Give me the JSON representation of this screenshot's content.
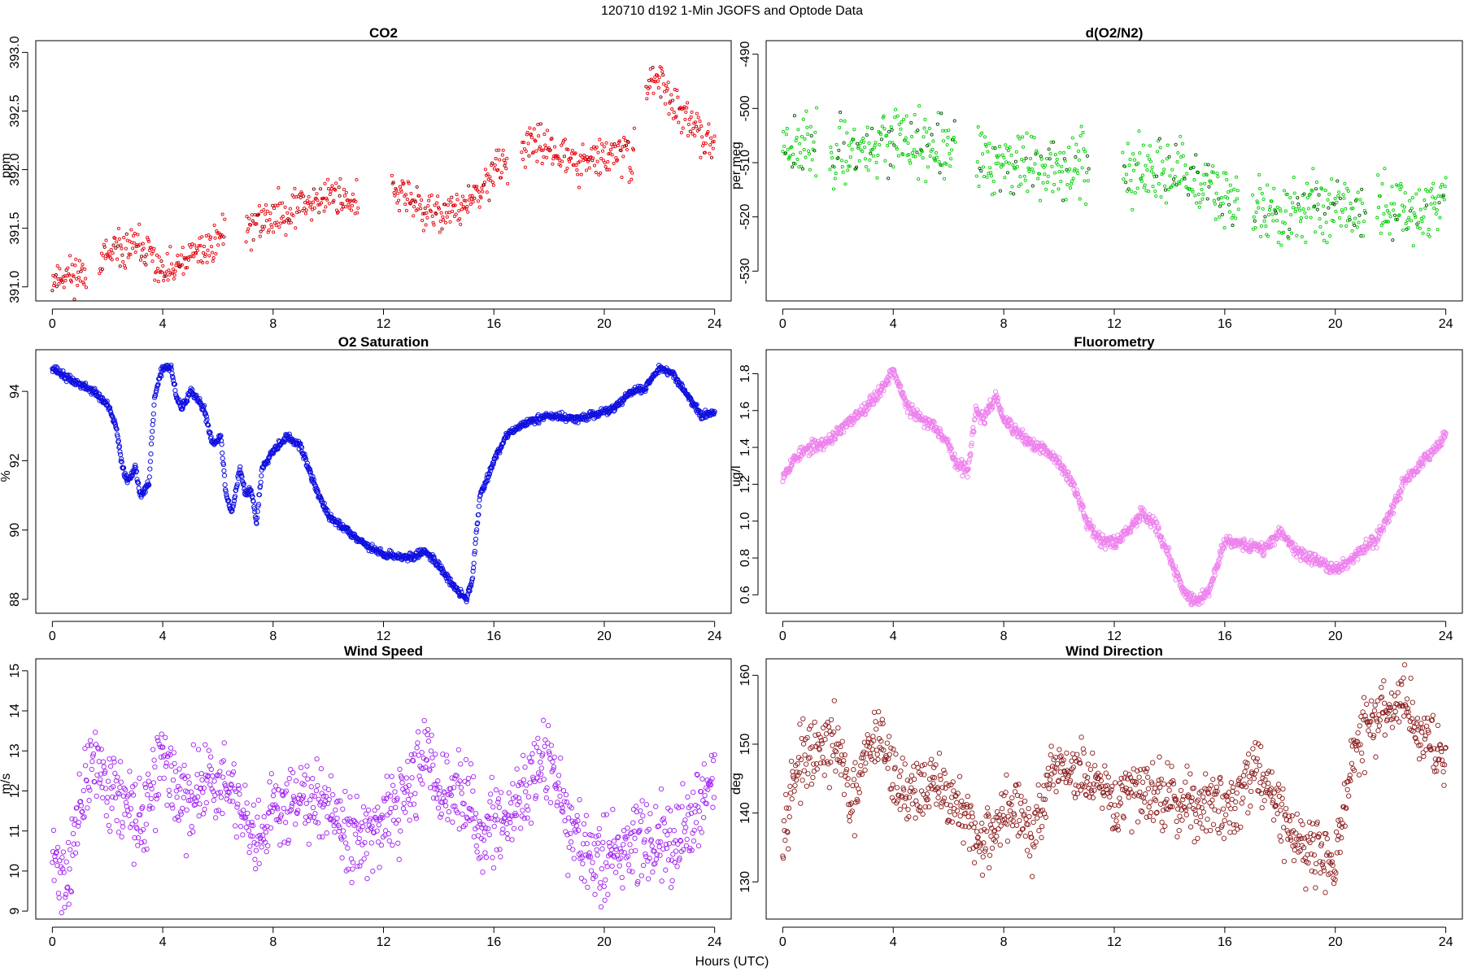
{
  "figure": {
    "title": "120710   d192   1-Min  JGOFS and Optode Data",
    "xlabel": "Hours (UTC)"
  },
  "chart_data": [
    {
      "id": "co2",
      "type": "scatter",
      "title": "CO2",
      "ylabel": "ppm",
      "color": "#e8000b",
      "dark_color": "#7a0000",
      "marker": "small-circle",
      "xlim": [
        -0.6,
        24.6
      ],
      "ylim": [
        390.88,
        393.1
      ],
      "xticks": [
        0,
        4,
        8,
        12,
        16,
        20,
        24
      ],
      "yticks": [
        391.0,
        391.5,
        392.0,
        392.5,
        393.0
      ],
      "ytick_labels": [
        "391.0",
        "391.5",
        "392.0",
        "392.5",
        "393.0"
      ],
      "gaps": [
        [
          1.25,
          1.7
        ],
        [
          6.25,
          7.0
        ],
        [
          11.1,
          12.3
        ],
        [
          16.5,
          17.0
        ],
        [
          21.1,
          21.5
        ]
      ],
      "trend_x": [
        0,
        0.4,
        1.0,
        1.3,
        2.0,
        3.0,
        3.5,
        4.0,
        4.5,
        5.0,
        6.0,
        6.2,
        7.0,
        8.0,
        9.0,
        10.0,
        11.0,
        12.3,
        13.0,
        13.5,
        14.5,
        15.0,
        15.5,
        16.0,
        16.5,
        17.0,
        18.0,
        19.0,
        20.0,
        20.5,
        21.0,
        21.5,
        22.0,
        22.5,
        23.0,
        23.5,
        24.0
      ],
      "trend_y": [
        391.07,
        391.1,
        391.12,
        391.15,
        391.25,
        391.35,
        391.3,
        391.1,
        391.15,
        391.25,
        391.4,
        391.5,
        391.5,
        391.6,
        391.7,
        391.78,
        391.75,
        391.8,
        391.75,
        391.62,
        391.65,
        391.7,
        391.78,
        392.0,
        392.05,
        392.2,
        392.2,
        392.05,
        392.1,
        392.15,
        392.1,
        392.7,
        392.8,
        392.55,
        392.4,
        392.3,
        392.25
      ],
      "noise": 0.12,
      "seed": 11
    },
    {
      "id": "do2n2",
      "type": "scatter",
      "title": "d(O2/N2)",
      "ylabel": "per meg",
      "color": "#00d000",
      "dark_color": "#005000",
      "marker": "small-circle",
      "xlim": [
        -0.6,
        24.6
      ],
      "ylim": [
        -535.5,
        -487.5
      ],
      "xticks": [
        0,
        4,
        8,
        12,
        16,
        20,
        24
      ],
      "yticks": [
        -530,
        -520,
        -510,
        -500,
        -490
      ],
      "ytick_labels": [
        "-530",
        "-520",
        "-510",
        "-500",
        "-490"
      ],
      "gaps": [
        [
          1.25,
          1.7
        ],
        [
          6.25,
          7.0
        ],
        [
          11.1,
          12.3
        ],
        [
          16.5,
          17.0
        ],
        [
          21.1,
          21.5
        ]
      ],
      "trend_x": [
        0,
        2,
        4,
        6,
        8,
        10,
        11,
        12.3,
        14,
        16,
        17,
        18,
        20,
        21,
        22,
        23,
        24
      ],
      "trend_y": [
        -506,
        -508,
        -506,
        -508,
        -510,
        -511,
        -510,
        -512,
        -512,
        -516,
        -518,
        -520,
        -517,
        -519,
        -518,
        -519,
        -517
      ],
      "noise": 4.5,
      "seed": 23
    },
    {
      "id": "o2sat",
      "type": "scatter",
      "title": "O2 Saturation",
      "ylabel": "%",
      "color": "#1010e0",
      "dark_color": "#1010e0",
      "marker": "dense-circle",
      "xlim": [
        -0.6,
        24.6
      ],
      "ylim": [
        87.6,
        95.2
      ],
      "xticks": [
        0,
        4,
        8,
        12,
        16,
        20,
        24
      ],
      "yticks": [
        88,
        90,
        92,
        94
      ],
      "ytick_labels": [
        "88",
        "90",
        "92",
        "94"
      ],
      "gaps": [],
      "trend_x": [
        0,
        0.5,
        1.0,
        1.5,
        2.0,
        2.3,
        2.5,
        2.7,
        3.0,
        3.2,
        3.5,
        3.7,
        4.0,
        4.3,
        4.5,
        4.7,
        5.0,
        5.5,
        5.8,
        6.1,
        6.3,
        6.5,
        6.8,
        7.0,
        7.2,
        7.4,
        7.6,
        8.0,
        8.5,
        9.0,
        9.5,
        10.0,
        10.5,
        11.0,
        11.5,
        12.0,
        13.0,
        13.5,
        14.0,
        14.5,
        15.0,
        15.2,
        15.5,
        16.0,
        16.5,
        17.0,
        17.5,
        18.0,
        19.0,
        20.0,
        20.5,
        21.0,
        21.5,
        22.0,
        22.5,
        23.0,
        23.5,
        24.0
      ],
      "trend_y": [
        94.7,
        94.4,
        94.2,
        94.0,
        93.6,
        93.0,
        92.0,
        91.4,
        91.8,
        91.0,
        91.3,
        93.8,
        94.7,
        94.7,
        93.8,
        93.5,
        94.0,
        93.5,
        92.5,
        92.7,
        91.0,
        90.5,
        91.8,
        91.0,
        91.2,
        90.2,
        91.8,
        92.3,
        92.7,
        92.4,
        91.3,
        90.4,
        90.1,
        89.8,
        89.5,
        89.3,
        89.2,
        89.4,
        89.0,
        88.4,
        88.0,
        88.5,
        91.0,
        92.0,
        92.8,
        93.0,
        93.2,
        93.3,
        93.2,
        93.4,
        93.6,
        94.0,
        94.1,
        94.7,
        94.5,
        93.9,
        93.3,
        93.4
      ],
      "noise": 0.08,
      "seed": 37
    },
    {
      "id": "fluor",
      "type": "scatter",
      "title": "Fluorometry",
      "ylabel": "ug/l",
      "color": "#ee82ee",
      "dark_color": "#ee82ee",
      "marker": "dense-circle",
      "xlim": [
        -0.6,
        24.6
      ],
      "ylim": [
        0.5,
        1.93
      ],
      "xticks": [
        0,
        4,
        8,
        12,
        16,
        20,
        24
      ],
      "yticks": [
        0.6,
        0.8,
        1.0,
        1.2,
        1.4,
        1.6,
        1.8
      ],
      "ytick_labels": [
        "0.6",
        "0.8",
        "1.0",
        "1.2",
        "1.4",
        "1.6",
        "1.8"
      ],
      "gaps": [],
      "trend_x": [
        0,
        0.5,
        1.0,
        1.5,
        2.0,
        2.5,
        3.0,
        3.5,
        4.0,
        4.5,
        5.0,
        5.5,
        6.0,
        6.3,
        6.7,
        7.0,
        7.3,
        7.7,
        8.0,
        8.5,
        9.0,
        9.5,
        10.0,
        10.5,
        11.0,
        11.5,
        12.0,
        12.5,
        13.0,
        13.5,
        14.0,
        14.5,
        15.0,
        15.5,
        16.0,
        16.5,
        17.0,
        17.5,
        18.0,
        18.5,
        19.0,
        19.5,
        20.0,
        20.5,
        21.0,
        21.5,
        22.0,
        22.5,
        23.0,
        23.5,
        24.0
      ],
      "trend_y": [
        1.25,
        1.35,
        1.4,
        1.42,
        1.48,
        1.55,
        1.62,
        1.7,
        1.82,
        1.62,
        1.55,
        1.52,
        1.42,
        1.3,
        1.28,
        1.6,
        1.55,
        1.68,
        1.55,
        1.48,
        1.42,
        1.38,
        1.32,
        1.2,
        1.0,
        0.9,
        0.88,
        0.95,
        1.05,
        0.98,
        0.8,
        0.62,
        0.56,
        0.65,
        0.9,
        0.88,
        0.86,
        0.85,
        0.95,
        0.85,
        0.8,
        0.78,
        0.73,
        0.78,
        0.85,
        0.9,
        1.05,
        1.22,
        1.3,
        1.38,
        1.47
      ],
      "noise": 0.025,
      "seed": 53
    },
    {
      "id": "wspd",
      "type": "scatter",
      "title": "Wind Speed",
      "ylabel": "m/s",
      "color": "#a020f0",
      "dark_color": "#a020f0",
      "marker": "open-circle",
      "xlim": [
        -0.6,
        24.6
      ],
      "ylim": [
        8.8,
        15.3
      ],
      "xticks": [
        0,
        4,
        8,
        12,
        16,
        20,
        24
      ],
      "yticks": [
        9,
        10,
        11,
        12,
        13,
        14,
        15
      ],
      "ytick_labels": [
        "9",
        "10",
        "11",
        "12",
        "13",
        "14",
        "15"
      ],
      "gaps": [],
      "trend_x": [
        0,
        0.5,
        1.0,
        1.5,
        2.0,
        2.5,
        3.0,
        3.5,
        4.0,
        4.5,
        5.0,
        5.5,
        6.0,
        6.5,
        7.0,
        7.5,
        8.0,
        9.0,
        10.0,
        11.0,
        12.0,
        13.0,
        13.5,
        14.0,
        15.0,
        15.5,
        16.0,
        16.5,
        17.0,
        17.5,
        18.0,
        18.5,
        19.0,
        19.5,
        20.0,
        21.0,
        22.0,
        23.0,
        23.5,
        24.0
      ],
      "trend_y": [
        10.3,
        9.8,
        11.5,
        12.8,
        12.2,
        11.8,
        11.2,
        11.5,
        13.0,
        12.0,
        11.5,
        12.5,
        12.0,
        12.2,
        11.0,
        10.5,
        11.5,
        12.0,
        11.8,
        10.8,
        11.0,
        12.0,
        13.0,
        12.0,
        11.8,
        11.0,
        11.2,
        11.0,
        12.0,
        12.5,
        12.8,
        11.5,
        10.8,
        10.3,
        10.2,
        10.8,
        10.8,
        11.0,
        11.5,
        12.3
      ],
      "noise": 0.75,
      "seed": 71
    },
    {
      "id": "wdir",
      "type": "scatter",
      "title": "Wind Direction",
      "ylabel": "deg",
      "color": "#8b1a1a",
      "dark_color": "#8b1a1a",
      "marker": "open-circle",
      "xlim": [
        -0.6,
        24.6
      ],
      "ylim": [
        124.6,
        162.4
      ],
      "xticks": [
        0,
        4,
        8,
        12,
        16,
        20,
        24
      ],
      "yticks": [
        130,
        140,
        150,
        160
      ],
      "ytick_labels": [
        "130",
        "140",
        "150",
        "160"
      ],
      "gaps": [],
      "trend_x": [
        0,
        0.5,
        1.0,
        1.5,
        2.0,
        2.5,
        3.0,
        3.5,
        4.0,
        4.5,
        5.0,
        6.0,
        7.0,
        7.5,
        8.0,
        8.5,
        9.0,
        9.5,
        10.0,
        11.0,
        12.0,
        13.0,
        14.0,
        15.0,
        16.0,
        16.5,
        17.0,
        17.5,
        18.0,
        18.5,
        19.0,
        19.5,
        20.0,
        20.5,
        21.0,
        22.0,
        22.5,
        23.0,
        23.5,
        24.0
      ],
      "trend_y": [
        138,
        147,
        148,
        149,
        150,
        140,
        148,
        152,
        145,
        143,
        144,
        143,
        136,
        137,
        140,
        141,
        136,
        142,
        147,
        145,
        141,
        144,
        142,
        141,
        141,
        142,
        147,
        145,
        140,
        137,
        135,
        134,
        133,
        145,
        152,
        155,
        157,
        152,
        150,
        148
      ],
      "noise": 3.5,
      "seed": 97
    }
  ]
}
